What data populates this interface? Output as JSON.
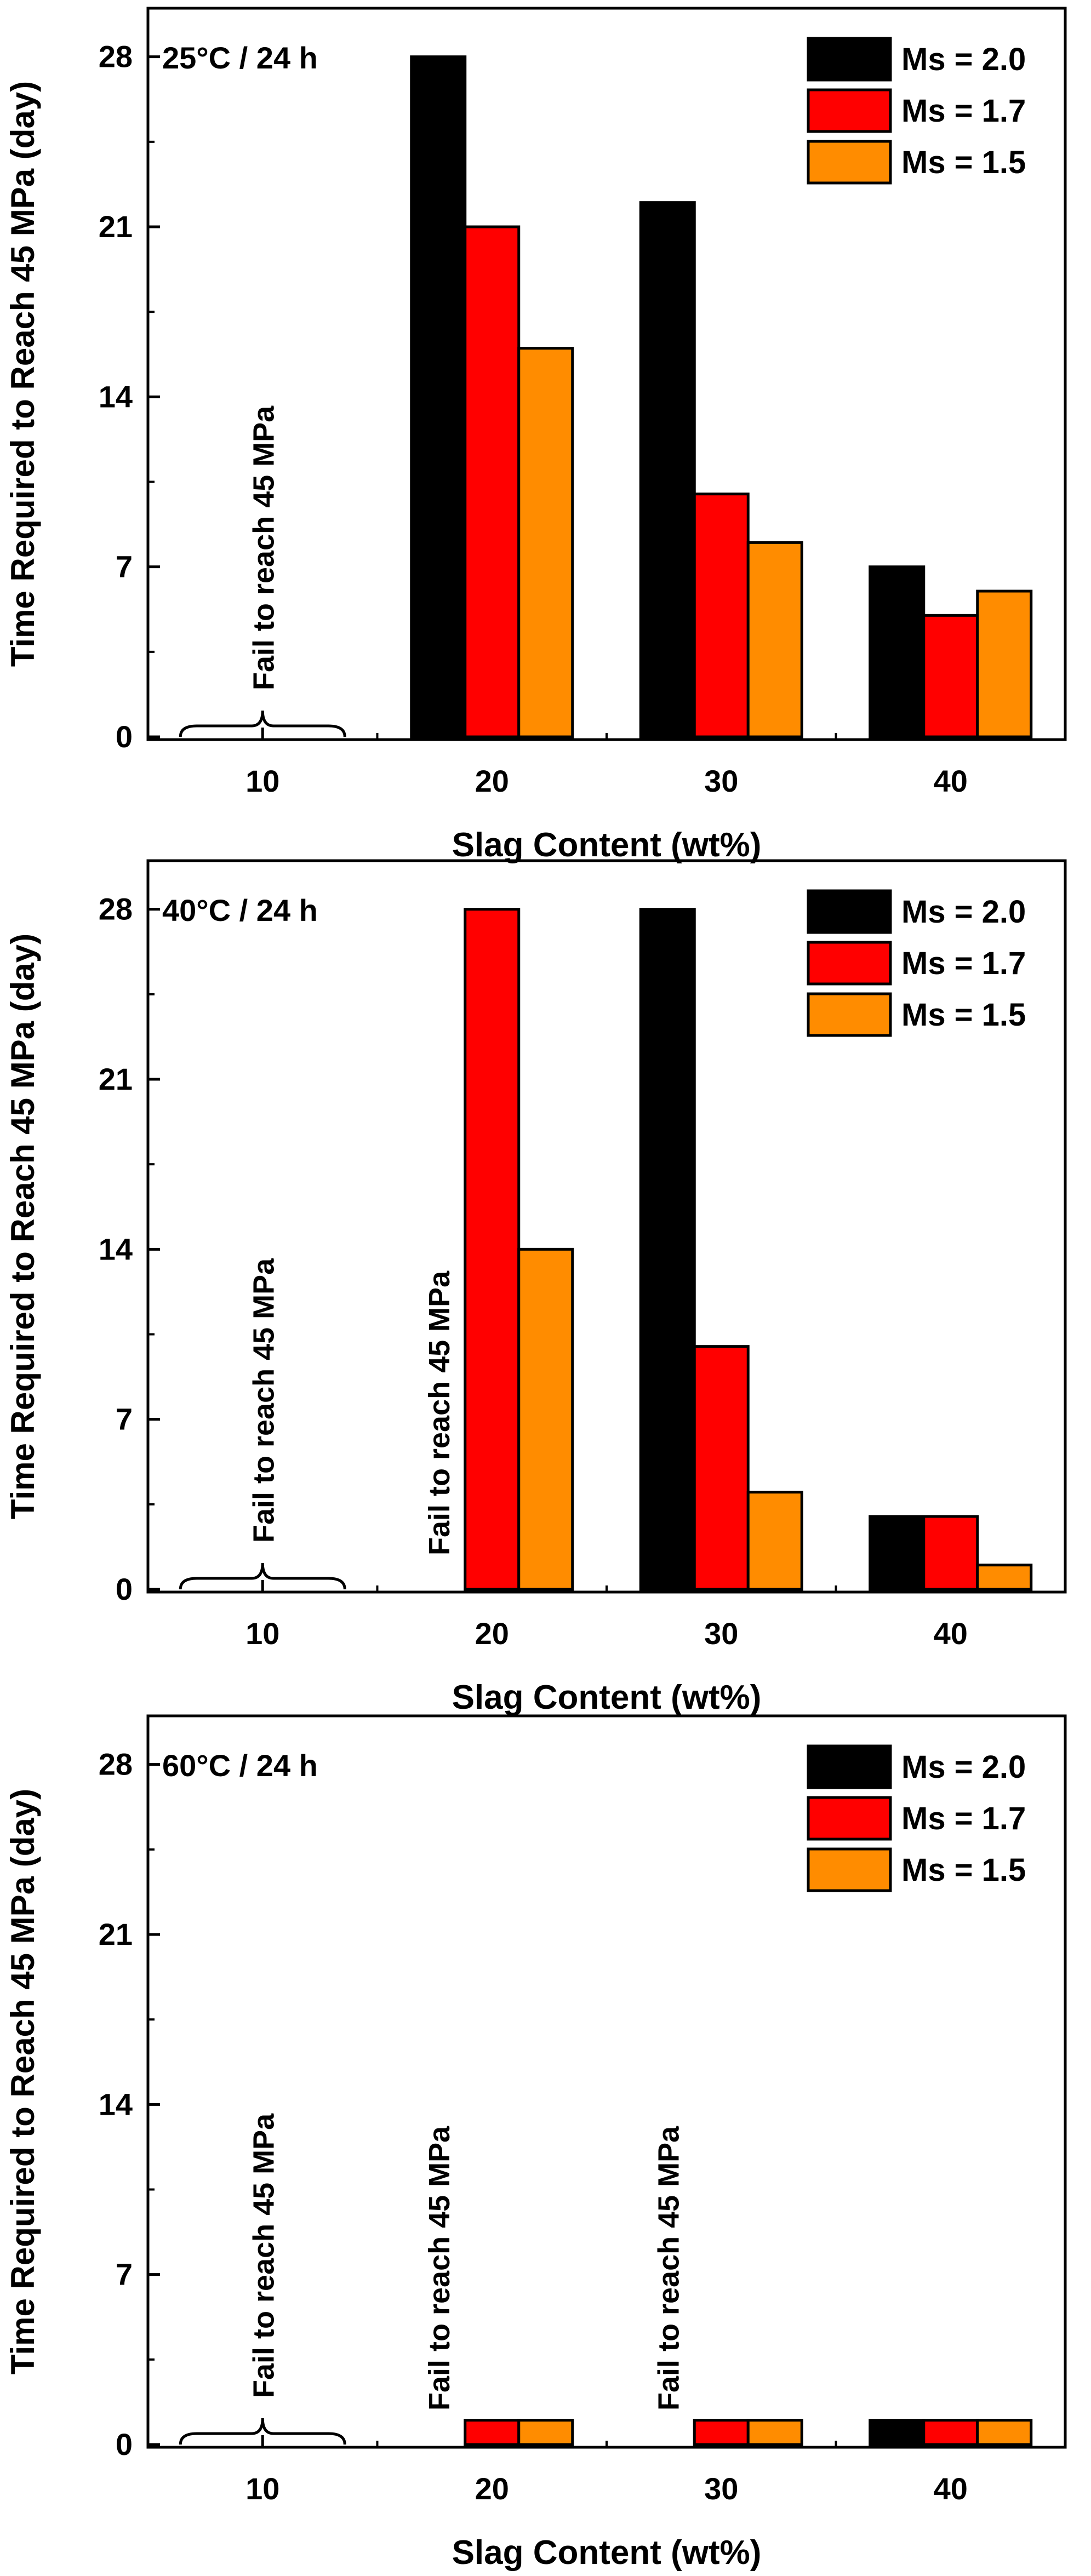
{
  "chart_data": [
    {
      "type": "bar",
      "panel_label": "25°C / 24 h",
      "xlabel": "Slag Content (wt%)",
      "ylabel": "Time Required to Reach 45 MPa (day)",
      "categories": [
        "10",
        "20",
        "30",
        "40"
      ],
      "ylim": [
        0,
        30
      ],
      "yticks": [
        0,
        7,
        14,
        21,
        28
      ],
      "series": [
        {
          "name": "Ms = 2.0",
          "color": "#000000",
          "values": [
            null,
            28,
            22,
            7
          ]
        },
        {
          "name": "Ms = 1.7",
          "color": "#ff0000",
          "values": [
            null,
            21,
            10,
            5
          ]
        },
        {
          "name": "Ms = 1.5",
          "color": "#ff8c00",
          "values": [
            null,
            16,
            8,
            6
          ]
        }
      ],
      "legend_position": "top-right",
      "annotations": [
        {
          "category": "10",
          "text": "Fail to reach 45 MPa",
          "brace": true
        }
      ]
    },
    {
      "type": "bar",
      "panel_label": "40°C / 24 h",
      "xlabel": "Slag Content (wt%)",
      "ylabel": "Time Required to Reach 45 MPa (day)",
      "categories": [
        "10",
        "20",
        "30",
        "40"
      ],
      "ylim": [
        0,
        30
      ],
      "yticks": [
        0,
        7,
        14,
        21,
        28
      ],
      "series": [
        {
          "name": "Ms = 2.0",
          "color": "#000000",
          "values": [
            null,
            null,
            28,
            3
          ]
        },
        {
          "name": "Ms = 1.7",
          "color": "#ff0000",
          "values": [
            null,
            28,
            10,
            3
          ]
        },
        {
          "name": "Ms = 1.5",
          "color": "#ff8c00",
          "values": [
            null,
            14,
            4,
            1
          ]
        }
      ],
      "legend_position": "top-right",
      "annotations": [
        {
          "category": "10",
          "text": "Fail to reach 45 MPa",
          "brace": true
        },
        {
          "category": "20",
          "series": 0,
          "text": "Fail to reach 45 MPa",
          "brace": false
        }
      ]
    },
    {
      "type": "bar",
      "panel_label": "60°C / 24 h",
      "xlabel": "Slag Content (wt%)",
      "ylabel": "Time Required to Reach 45 MPa (day)",
      "categories": [
        "10",
        "20",
        "30",
        "40"
      ],
      "ylim": [
        0,
        30
      ],
      "yticks": [
        0,
        7,
        14,
        21,
        28
      ],
      "series": [
        {
          "name": "Ms = 2.0",
          "color": "#000000",
          "values": [
            null,
            null,
            null,
            1
          ]
        },
        {
          "name": "Ms = 1.7",
          "color": "#ff0000",
          "values": [
            null,
            1,
            1,
            1
          ]
        },
        {
          "name": "Ms = 1.5",
          "color": "#ff8c00",
          "values": [
            null,
            1,
            1,
            1
          ]
        }
      ],
      "legend_position": "top-right",
      "annotations": [
        {
          "category": "10",
          "text": "Fail to reach 45 MPa",
          "brace": true
        },
        {
          "category": "20",
          "series": 0,
          "text": "Fail to reach 45 MPa",
          "brace": false
        },
        {
          "category": "30",
          "series": 0,
          "text": "Fail to reach 45 MPa",
          "brace": false
        }
      ]
    }
  ]
}
